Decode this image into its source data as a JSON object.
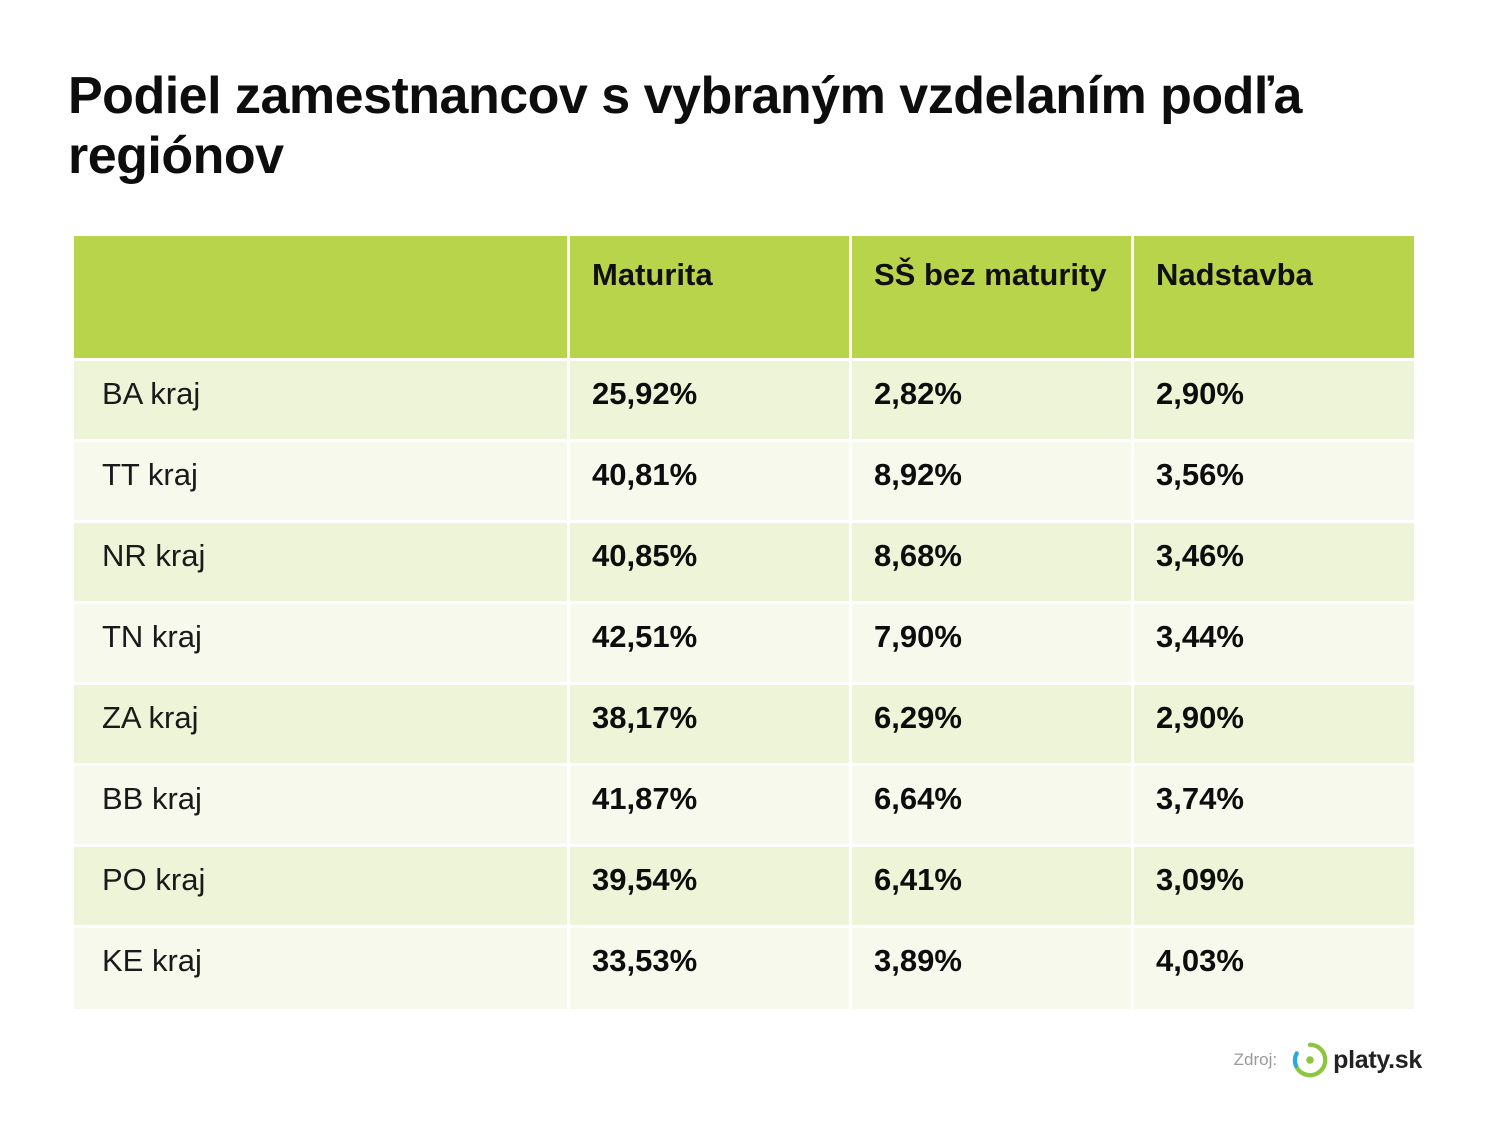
{
  "chart_data": {
    "type": "table",
    "title": "Podiel zamestnancov s vybraným vzdelaním podľa regiónov",
    "columns": [
      "",
      "Maturita",
      "SŠ bez maturity",
      "Nadstavba"
    ],
    "rows": [
      {
        "region": "BA kraj",
        "values": [
          "25,92%",
          "2,82%",
          "2,90%"
        ]
      },
      {
        "region": "TT kraj",
        "values": [
          "40,81%",
          "8,92%",
          "3,56%"
        ]
      },
      {
        "region": "NR kraj",
        "values": [
          "40,85%",
          "8,68%",
          "3,46%"
        ]
      },
      {
        "region": "TN kraj",
        "values": [
          "42,51%",
          "7,90%",
          "3,44%"
        ]
      },
      {
        "region": "ZA kraj",
        "values": [
          "38,17%",
          "6,29%",
          "2,90%"
        ]
      },
      {
        "region": "BB kraj",
        "values": [
          "41,87%",
          "6,64%",
          "3,74%"
        ]
      },
      {
        "region": "PO kraj",
        "values": [
          "39,54%",
          "6,41%",
          "3,09%"
        ]
      },
      {
        "region": "KE kraj",
        "values": [
          "33,53%",
          "3,89%",
          "4,03%"
        ]
      }
    ]
  },
  "source": {
    "label": "Zdroj:",
    "brand": "platy.sk"
  },
  "colors": {
    "header": "#b8d44b",
    "row_odd": "#edf4d8",
    "row_even": "#f6f9ec",
    "logo_green": "#8cc63f",
    "logo_blue": "#29a9e0"
  }
}
